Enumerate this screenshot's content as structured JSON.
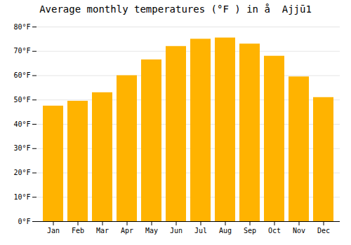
{
  "chart_data": {
    "type": "bar",
    "title": "Average monthly temperatures (°F ) in å  Ajjū1",
    "categories": [
      "Jan",
      "Feb",
      "Mar",
      "Apr",
      "May",
      "Jun",
      "Jul",
      "Aug",
      "Sep",
      "Oct",
      "Nov",
      "Dec"
    ],
    "values": [
      47.5,
      49.5,
      53.0,
      60.0,
      66.5,
      72.0,
      75.0,
      75.5,
      73.0,
      68.0,
      59.5,
      51.0
    ],
    "color": "#FFB300",
    "ylim": [
      0,
      80
    ],
    "yticks": [
      {
        "value": 0,
        "label": "0°F"
      },
      {
        "value": 10,
        "label": "10°F"
      },
      {
        "value": 20,
        "label": "20°F"
      },
      {
        "value": 30,
        "label": "30°F"
      },
      {
        "value": 40,
        "label": "40°F"
      },
      {
        "value": 50,
        "label": "50°F"
      },
      {
        "value": 60,
        "label": "60°F"
      },
      {
        "value": 70,
        "label": "70°F"
      },
      {
        "value": 80,
        "label": "80°F"
      }
    ],
    "grid": true
  }
}
